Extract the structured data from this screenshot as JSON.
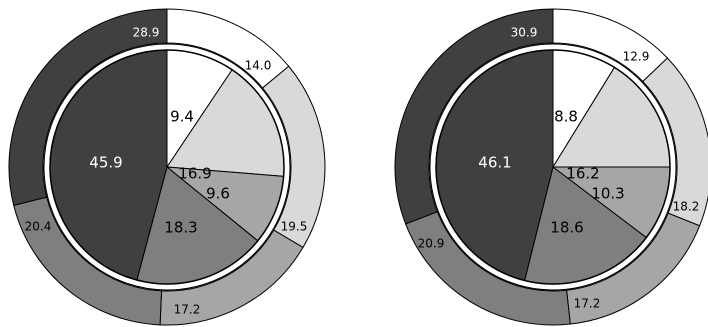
{
  "colors": {
    "c1": "#ffffff",
    "c2": "#d9d9d9",
    "c3": "#a6a6a6",
    "c4": "#7f7f7f",
    "c5": "#404040",
    "stroke": "#000000",
    "text_dark": "#000000",
    "text_light": "#ffffff"
  },
  "chart_data": [
    {
      "type": "pie",
      "variant": "nested-donut",
      "inner": {
        "values": [
          9.4,
          16.9,
          9.6,
          18.3,
          45.9
        ],
        "labels": [
          "9.4",
          "16.9",
          "9.6",
          "18.3",
          "45.9"
        ]
      },
      "outer": {
        "values": [
          14.0,
          19.5,
          17.2,
          20.4,
          28.9
        ],
        "labels": [
          "14.0",
          "19.5",
          "17.2",
          "20.4",
          "28.9"
        ]
      }
    },
    {
      "type": "pie",
      "variant": "nested-donut",
      "inner": {
        "values": [
          8.8,
          16.2,
          10.3,
          18.6,
          46.1
        ],
        "labels": [
          "8.8",
          "16.2",
          "10.3",
          "18.6",
          "46.1"
        ]
      },
      "outer": {
        "values": [
          12.9,
          18.2,
          17.2,
          20.9,
          30.9
        ],
        "labels": [
          "12.9",
          "18.2",
          "17.2",
          "20.9",
          "30.9"
        ]
      }
    }
  ]
}
